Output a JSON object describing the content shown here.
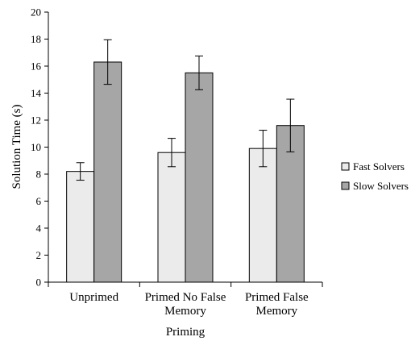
{
  "chart_data": {
    "type": "bar",
    "title": "",
    "xlabel": "Priming",
    "ylabel": "Solution Time (s)",
    "ylim": [
      0,
      20
    ],
    "yticks": [
      0,
      2,
      4,
      6,
      8,
      10,
      12,
      14,
      16,
      18,
      20
    ],
    "categories": [
      [
        "Unprimed"
      ],
      [
        "Primed No False",
        "Memory"
      ],
      [
        "Primed False",
        "Memory"
      ]
    ],
    "series": [
      {
        "name": "Fast Solvers",
        "color": "#ebebeb",
        "values": [
          8.2,
          9.6,
          9.9
        ],
        "error": [
          0.65,
          1.05,
          1.35
        ]
      },
      {
        "name": "Slow Solvers",
        "color": "#a6a6a6",
        "values": [
          16.3,
          15.5,
          11.6
        ],
        "error": [
          1.65,
          1.25,
          1.95
        ]
      }
    ],
    "legend_position": "right",
    "grid": false
  }
}
